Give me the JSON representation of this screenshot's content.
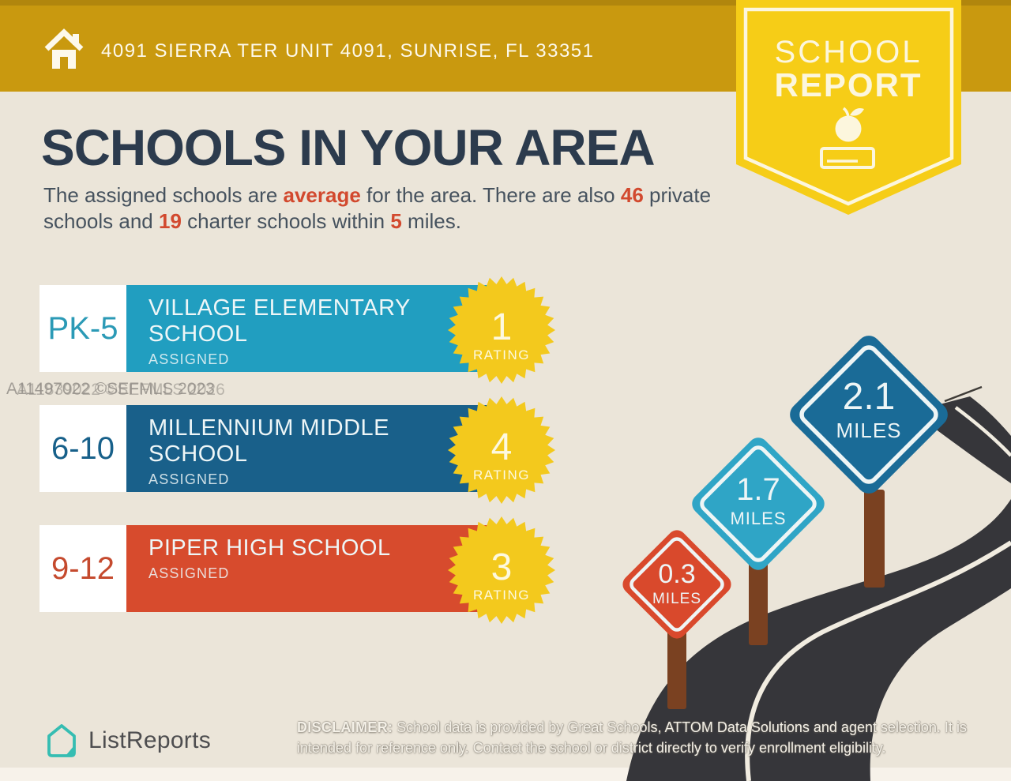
{
  "header": {
    "address": "4091 SIERRA TER UNIT 4091, SUNRISE, FL 33351"
  },
  "ribbon": {
    "line1": "SCHOOL",
    "line2": "REPORT"
  },
  "title": "SCHOOLS IN YOUR AREA",
  "intro": {
    "part1": "The assigned schools are ",
    "hl1": "average",
    "part2": " for the area. There are also ",
    "hl2": "46",
    "part3": " private schools and ",
    "hl3": "19",
    "part4": " charter schools within ",
    "hl4": "5",
    "part5": " miles."
  },
  "schools": [
    {
      "grades": "PK-5",
      "name": "VILLAGE ELEMENTARY SCHOOL",
      "status": "ASSIGNED",
      "rating": "1",
      "rating_label": "RATING",
      "bar_color": "#219ec0",
      "grade_color": "#2b9ab6"
    },
    {
      "grades": "6-10",
      "name": "MILLENNIUM MIDDLE SCHOOL",
      "status": "ASSIGNED",
      "rating": "4",
      "rating_label": "RATING",
      "bar_color": "#19608a",
      "grade_color": "#17608a"
    },
    {
      "grades": "9-12",
      "name": "PIPER HIGH SCHOOL",
      "status": "ASSIGNED",
      "rating": "3",
      "rating_label": "RATING",
      "bar_color": "#d74b2d",
      "grade_color": "#c54a2e"
    }
  ],
  "signs": [
    {
      "distance": "0.3",
      "unit": "MILES",
      "color": "#d9492c"
    },
    {
      "distance": "1.7",
      "unit": "MILES",
      "color": "#2fa5c6"
    },
    {
      "distance": "2.1",
      "unit": "MILES",
      "color": "#1a6b97"
    }
  ],
  "watermark": {
    "line1": "A11497022 ©SEFMLS 2023",
    "line2": "A11839022 ©SEFMLS 2026"
  },
  "footer": {
    "brand": "ListReports",
    "disclaimer_label": "DISCLAIMER:",
    "disclaimer_text": " School data is provided by Great Schools, ATTOM Data Solutions and agent selection. It is intended for reference only. Contact the school or district directly to verify enrollment eligibility."
  },
  "palette": {
    "header_gold": "#c9990f",
    "header_gold_dark": "#b1860d",
    "ribbon_yellow": "#f6cd17",
    "background_cream": "#ebe5d9",
    "accent_red": "#d2492e",
    "navy_text": "#2c3b4d",
    "starburst_yellow": "#f3c91d",
    "road_charcoal": "#36363a",
    "road_line": "#f1ece0",
    "post_brown": "#7a4121",
    "brand_teal": "#35bdb2"
  }
}
